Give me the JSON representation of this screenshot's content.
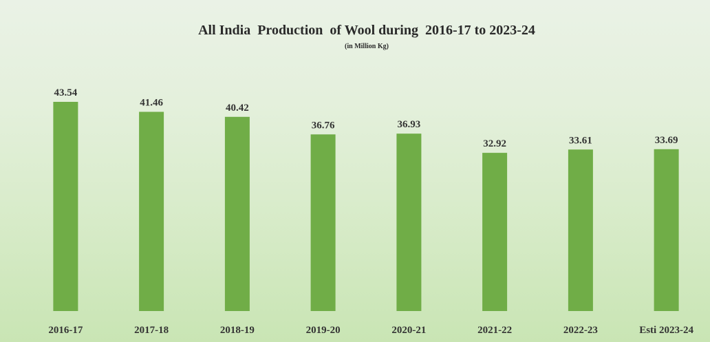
{
  "chart_data": {
    "type": "bar",
    "title": "All India  Production  of Wool during  2016-17 to 2023-24",
    "subtitle": "(in Million Kg)",
    "categories": [
      "2016-17",
      "2017-18",
      "2018-19",
      "2019-20",
      "2020-21",
      "2021-22",
      "2022-23",
      "Esti 2023-24"
    ],
    "values": [
      43.54,
      41.46,
      40.42,
      36.76,
      36.93,
      32.92,
      33.61,
      33.69
    ],
    "data_labels": [
      "43.54",
      "41.46",
      "40.42",
      "36.76",
      "36.93",
      "32.92",
      "33.61",
      "33.69"
    ],
    "xlabel": "",
    "ylabel": "",
    "ylim": [
      0,
      43.54
    ],
    "grid": false,
    "legend": "none",
    "bar_color": "#70ad47",
    "label_color": "#333333"
  }
}
